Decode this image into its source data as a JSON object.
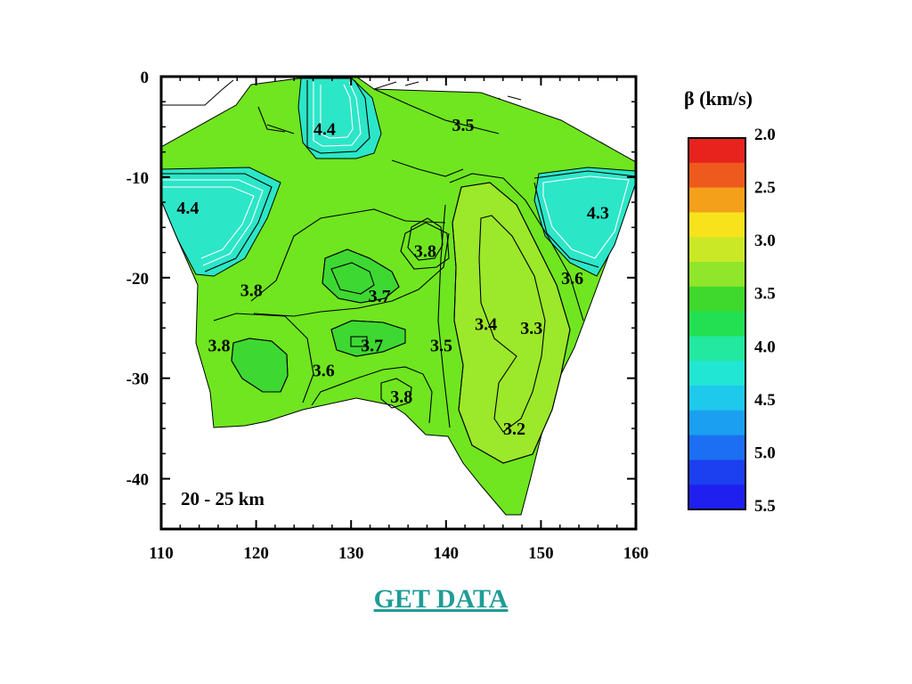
{
  "map": {
    "depth_label": "20 - 25 km",
    "x_axis": {
      "ticks": [
        "110",
        "120",
        "130",
        "140",
        "150",
        "160"
      ],
      "range": [
        110,
        160
      ]
    },
    "y_axis": {
      "ticks": [
        "0",
        "-10",
        "-20",
        "-30",
        "-40"
      ],
      "range": [
        -45,
        0
      ]
    },
    "contour_labels": [
      {
        "text": "4.4",
        "lon": 127.2,
        "lat": -5.2
      },
      {
        "text": "3.5",
        "lon": 141.8,
        "lat": -4.8
      },
      {
        "text": "4.4",
        "lon": 112.8,
        "lat": -13.0
      },
      {
        "text": "4.3",
        "lon": 156.0,
        "lat": -13.5
      },
      {
        "text": "3.8",
        "lon": 137.8,
        "lat": -17.3
      },
      {
        "text": "3.6",
        "lon": 153.3,
        "lat": -20.0
      },
      {
        "text": "3.8",
        "lon": 119.5,
        "lat": -21.2
      },
      {
        "text": "3.7",
        "lon": 133.0,
        "lat": -21.8
      },
      {
        "text": "3.4",
        "lon": 144.2,
        "lat": -24.6
      },
      {
        "text": "3.3",
        "lon": 149.0,
        "lat": -25.0
      },
      {
        "text": "3.8",
        "lon": 116.1,
        "lat": -26.7
      },
      {
        "text": "3.7",
        "lon": 132.2,
        "lat": -26.7
      },
      {
        "text": "3.5",
        "lon": 139.5,
        "lat": -26.7
      },
      {
        "text": "3.6",
        "lon": 127.1,
        "lat": -29.2
      },
      {
        "text": "3.8",
        "lon": 135.3,
        "lat": -31.8
      },
      {
        "text": "3.2",
        "lon": 147.2,
        "lat": -35.0
      }
    ]
  },
  "legend": {
    "title": "β (km/s)",
    "labels": [
      "2.0",
      "2.5",
      "3.0",
      "3.5",
      "4.0",
      "4.5",
      "5.0",
      "5.5"
    ],
    "colors": [
      "#e8231d",
      "#ee5a1d",
      "#f5a01b",
      "#f7e21b",
      "#cbe826",
      "#8fe62a",
      "#3fd82c",
      "#22e052",
      "#22e8a0",
      "#22e6d4",
      "#1ec9ec",
      "#1b9ff0",
      "#1c6ff2",
      "#1c3ff0",
      "#1f1ff0"
    ]
  },
  "link": {
    "label": "GET DATA"
  },
  "colors": {
    "land_main": "#6fe61f",
    "land_dark": "#3ed832",
    "land_east": "#9ce82a",
    "land_cyan": "#2ce6c8",
    "link": "#1f9c96"
  }
}
